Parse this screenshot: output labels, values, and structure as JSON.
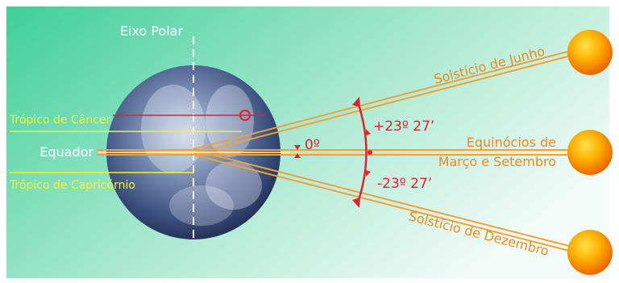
{
  "labels": {
    "axis": "Eixo Polar",
    "tropic_cancer": "Trópico de Câncer",
    "equator": "Equador",
    "tropic_capricorn": "Trópico de Capricórnio",
    "solstice_june": "Solstício de Junho",
    "equinox_line1": "Equinócios de",
    "equinox_line2": "Março e Setembro",
    "solstice_december": "Solstício de Dezembro",
    "angle_plus": "+23º 27’",
    "angle_zero": "0º",
    "angle_minus": "-23º 27’"
  },
  "colors": {
    "background_left": "#3fcf9a",
    "background_right": "#f2fbf8",
    "ray": "#f0a23a",
    "ray_text": "#f08a1c",
    "angle_red": "#e0222a",
    "tropic_yellow": "#f2f23a",
    "white": "#ffffff",
    "sun": "#ff8a00"
  }
}
